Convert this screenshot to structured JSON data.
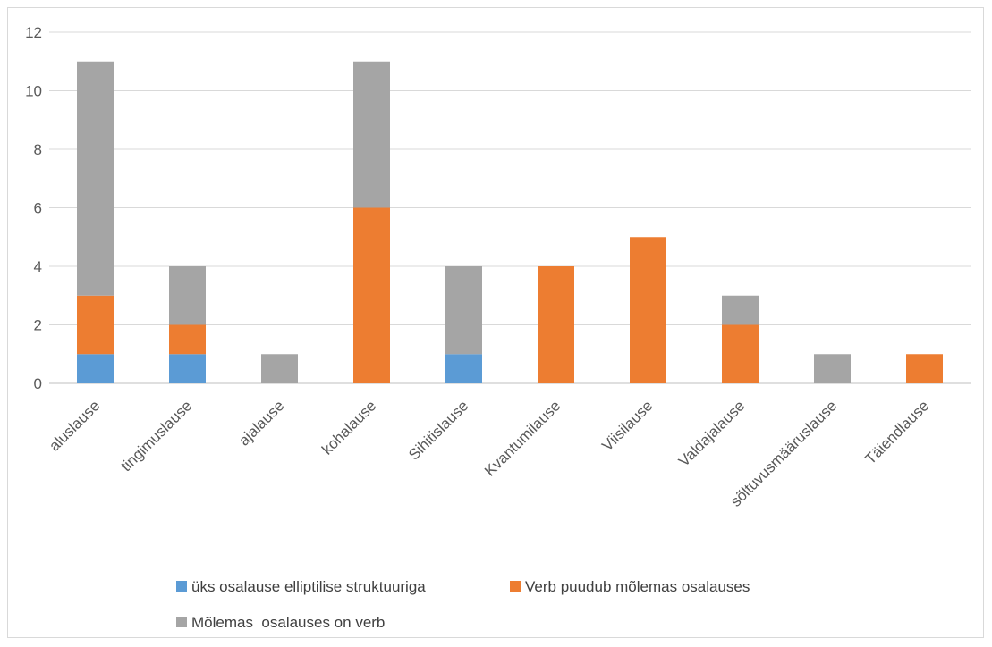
{
  "chart_data": {
    "type": "bar",
    "stacked": true,
    "title": "",
    "xlabel": "",
    "ylabel": "",
    "categories": [
      "aluslause",
      "tingimuslause",
      "ajalause",
      "kohalause",
      "Sihitislause",
      "Kvantumilause",
      "Viisilause",
      "Valdajalause",
      "sõltuvusmääruslause",
      "Täiendlause"
    ],
    "series": [
      {
        "name": "üks osalause elliptilise struktuuriga",
        "color": "#5b9bd5",
        "values": [
          1,
          1,
          0,
          0,
          1,
          0,
          0,
          0,
          0,
          0
        ]
      },
      {
        "name": "Verb puudub mõlemas osalauses",
        "color": "#ed7d31",
        "values": [
          2,
          1,
          0,
          6,
          0,
          4,
          5,
          2,
          0,
          1
        ]
      },
      {
        "name": "Mõlemas  osalauses on verb",
        "color": "#a5a5a5",
        "values": [
          8,
          2,
          1,
          5,
          3,
          0,
          0,
          1,
          1,
          0
        ]
      }
    ],
    "ylim": [
      0,
      12
    ],
    "yticks": [
      0,
      2,
      4,
      6,
      8,
      10,
      12
    ],
    "grid": true,
    "legend_position": "bottom"
  }
}
